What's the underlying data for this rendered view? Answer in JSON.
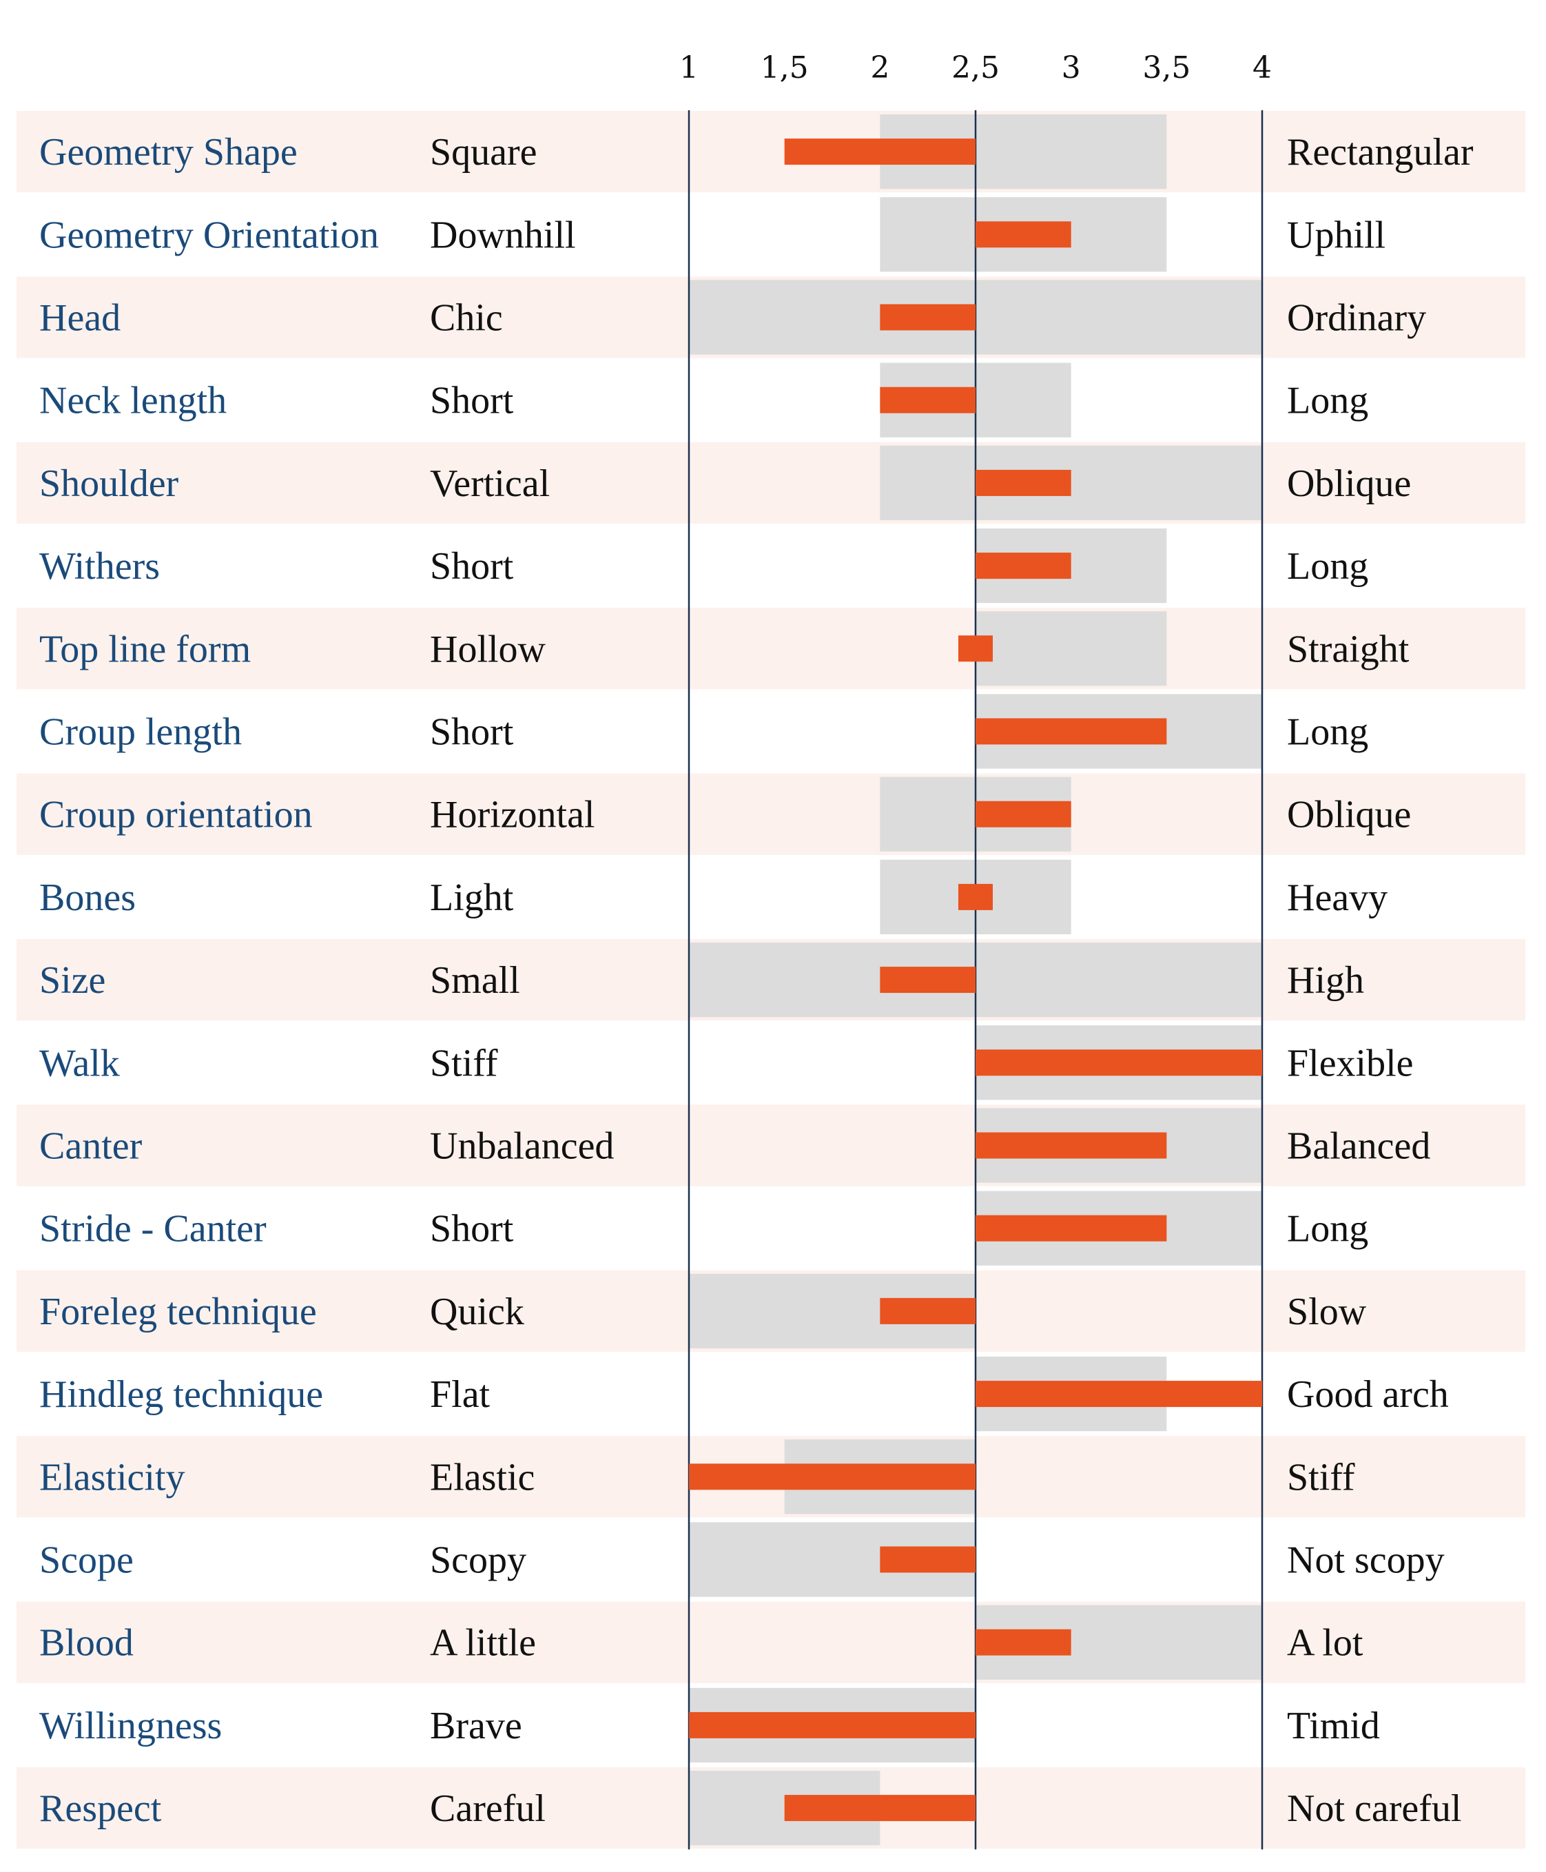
{
  "chart_data": {
    "type": "bar",
    "title": "",
    "xlim": [
      1,
      4
    ],
    "midpoint": 2.5,
    "x_ticks": [
      {
        "value": 1,
        "label": "1"
      },
      {
        "value": 1.5,
        "label": "1,5"
      },
      {
        "value": 2,
        "label": "2"
      },
      {
        "value": 2.5,
        "label": "2,5"
      },
      {
        "value": 3,
        "label": "3"
      },
      {
        "value": 3.5,
        "label": "3,5"
      },
      {
        "value": 4,
        "label": "4"
      }
    ],
    "colors": {
      "bar": "#e8531f",
      "range": "#dcdcdc",
      "row_alt": "#fcf1ec",
      "trait_text": "#1a4a7a",
      "axis": "#1a3050"
    },
    "rows": [
      {
        "trait": "Geometry Shape",
        "left": "Square",
        "right": "Rectangular",
        "value": 1.5,
        "range": [
          2.0,
          3.5
        ]
      },
      {
        "trait": "Geometry Orientation",
        "left": "Downhill",
        "right": "Uphill",
        "value": 3.0,
        "range": [
          2.0,
          3.5
        ]
      },
      {
        "trait": "Head",
        "left": "Chic",
        "right": "Ordinary",
        "value": 2.0,
        "range": [
          1.0,
          4.0
        ]
      },
      {
        "trait": "Neck length",
        "left": "Short",
        "right": "Long",
        "value": 2.0,
        "range": [
          2.0,
          3.0
        ]
      },
      {
        "trait": "Shoulder",
        "left": "Vertical",
        "right": "Oblique",
        "value": 3.0,
        "range": [
          2.0,
          4.0
        ]
      },
      {
        "trait": "Withers",
        "left": "Short",
        "right": "Long",
        "value": 3.0,
        "range": [
          2.5,
          3.5
        ]
      },
      {
        "trait": "Top line form",
        "left": "Hollow",
        "right": "Straight",
        "value": 2.5,
        "range": [
          2.5,
          3.5
        ]
      },
      {
        "trait": "Croup length",
        "left": "Short",
        "right": "Long",
        "value": 3.5,
        "range": [
          2.5,
          4.0
        ]
      },
      {
        "trait": "Croup orientation",
        "left": "Horizontal",
        "right": "Oblique",
        "value": 3.0,
        "range": [
          2.0,
          3.0
        ]
      },
      {
        "trait": "Bones",
        "left": "Light",
        "right": "Heavy",
        "value": 2.5,
        "range": [
          2.0,
          3.0
        ]
      },
      {
        "trait": "Size",
        "left": "Small",
        "right": "High",
        "value": 2.0,
        "range": [
          1.0,
          4.0
        ]
      },
      {
        "trait": "Walk",
        "left": "Stiff",
        "right": "Flexible",
        "value": 4.0,
        "range": [
          2.5,
          4.0
        ]
      },
      {
        "trait": "Canter",
        "left": "Unbalanced",
        "right": "Balanced",
        "value": 3.5,
        "range": [
          2.5,
          4.0
        ]
      },
      {
        "trait": "Stride - Canter",
        "left": "Short",
        "right": "Long",
        "value": 3.5,
        "range": [
          2.5,
          4.0
        ]
      },
      {
        "trait": "Foreleg technique",
        "left": "Quick",
        "right": "Slow",
        "value": 2.0,
        "range": [
          1.0,
          2.5
        ]
      },
      {
        "trait": "Hindleg technique",
        "left": "Flat",
        "right": "Good arch",
        "value": 4.0,
        "range": [
          2.5,
          3.5
        ]
      },
      {
        "trait": "Elasticity",
        "left": "Elastic",
        "right": "Stiff",
        "value": 1.0,
        "range": [
          1.5,
          2.5
        ]
      },
      {
        "trait": "Scope",
        "left": "Scopy",
        "right": "Not scopy",
        "value": 2.0,
        "range": [
          1.0,
          2.5
        ]
      },
      {
        "trait": "Blood",
        "left": "A little",
        "right": "A lot",
        "value": 3.0,
        "range": [
          2.5,
          4.0
        ]
      },
      {
        "trait": "Willingness",
        "left": "Brave",
        "right": "Timid",
        "value": 1.0,
        "range": [
          1.0,
          2.5
        ]
      },
      {
        "trait": "Respect",
        "left": "Careful",
        "right": "Not careful",
        "value": 1.5,
        "range": [
          1.0,
          2.0
        ]
      }
    ]
  }
}
